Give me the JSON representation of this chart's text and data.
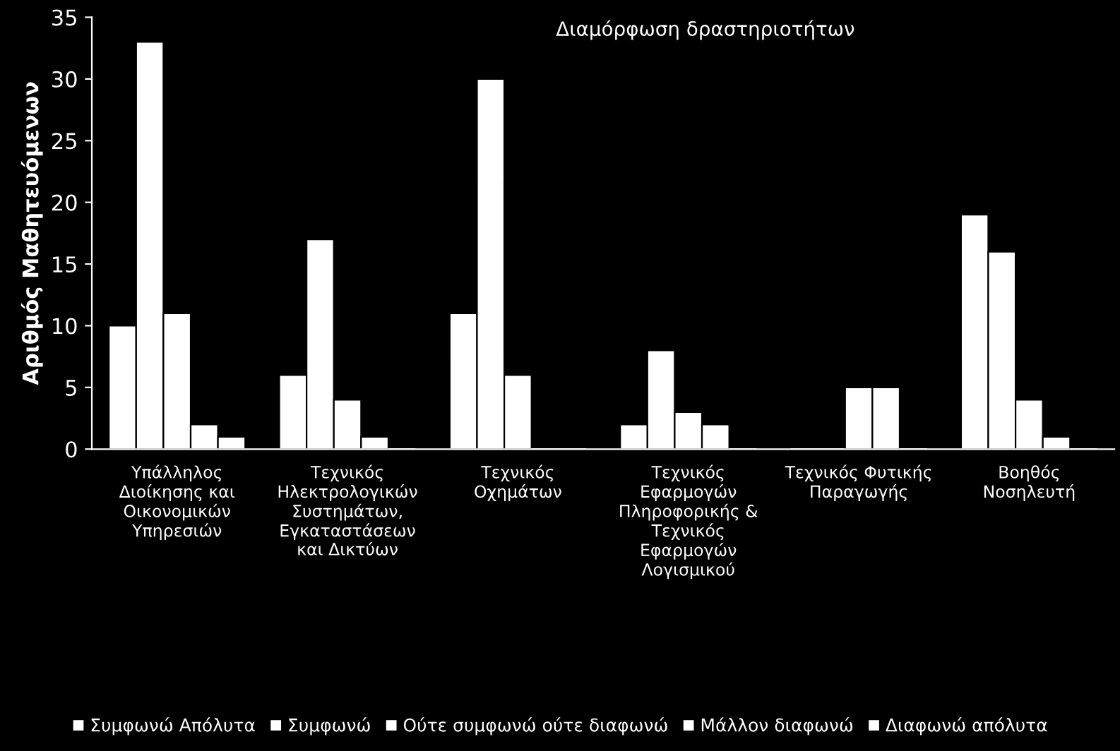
{
  "chart_data": {
    "type": "bar",
    "title": "Διαμόρφωση δραστηριοτήτων",
    "ylabel": "Αριθμός Μαθητευόμενων",
    "categories": [
      "Υπάλληλος\nΔιοίκησης και\nΟικονομικών\nΥπηρεσιών",
      "Τεχνικός\nΗλεκτρολογικών\nΣυστημάτων,\nΕγκαταστάσεων\nκαι Δικτύων",
      "Τεχνικός\nΟχημάτων",
      "Τεχνικός\nΕφαρμογών\nΠληροφορικής &\nΤεχνικός\nΕφαρμογών\nΛογισμικού",
      "Τεχνικός Φυτικής\nΠαραγωγής",
      "Βοηθός\nΝοσηλευτή"
    ],
    "series": [
      {
        "name": "Συμφωνώ Απόλυτα",
        "color": "#ffffff",
        "values": [
          10,
          6,
          11,
          2,
          0,
          19
        ]
      },
      {
        "name": "Συμφωνώ",
        "color": "#ffffff",
        "values": [
          33,
          17,
          30,
          8,
          0,
          16
        ]
      },
      {
        "name": "Ούτε συμφωνώ ούτε διαφωνώ",
        "color": "#ffffff",
        "values": [
          11,
          4,
          6,
          3,
          5,
          4
        ]
      },
      {
        "name": "Μάλλον διαφωνώ",
        "color": "#ffffff",
        "values": [
          2,
          1,
          0,
          2,
          5,
          1
        ]
      },
      {
        "name": "Διαφωνώ απόλυτα",
        "color": "#ffffff",
        "values": [
          1,
          0,
          0,
          0,
          0,
          0
        ]
      }
    ],
    "ylim": [
      0,
      35
    ],
    "yticks": [
      0,
      5,
      10,
      15,
      20,
      25,
      30,
      35
    ],
    "grid": false,
    "legend": "bottom"
  }
}
